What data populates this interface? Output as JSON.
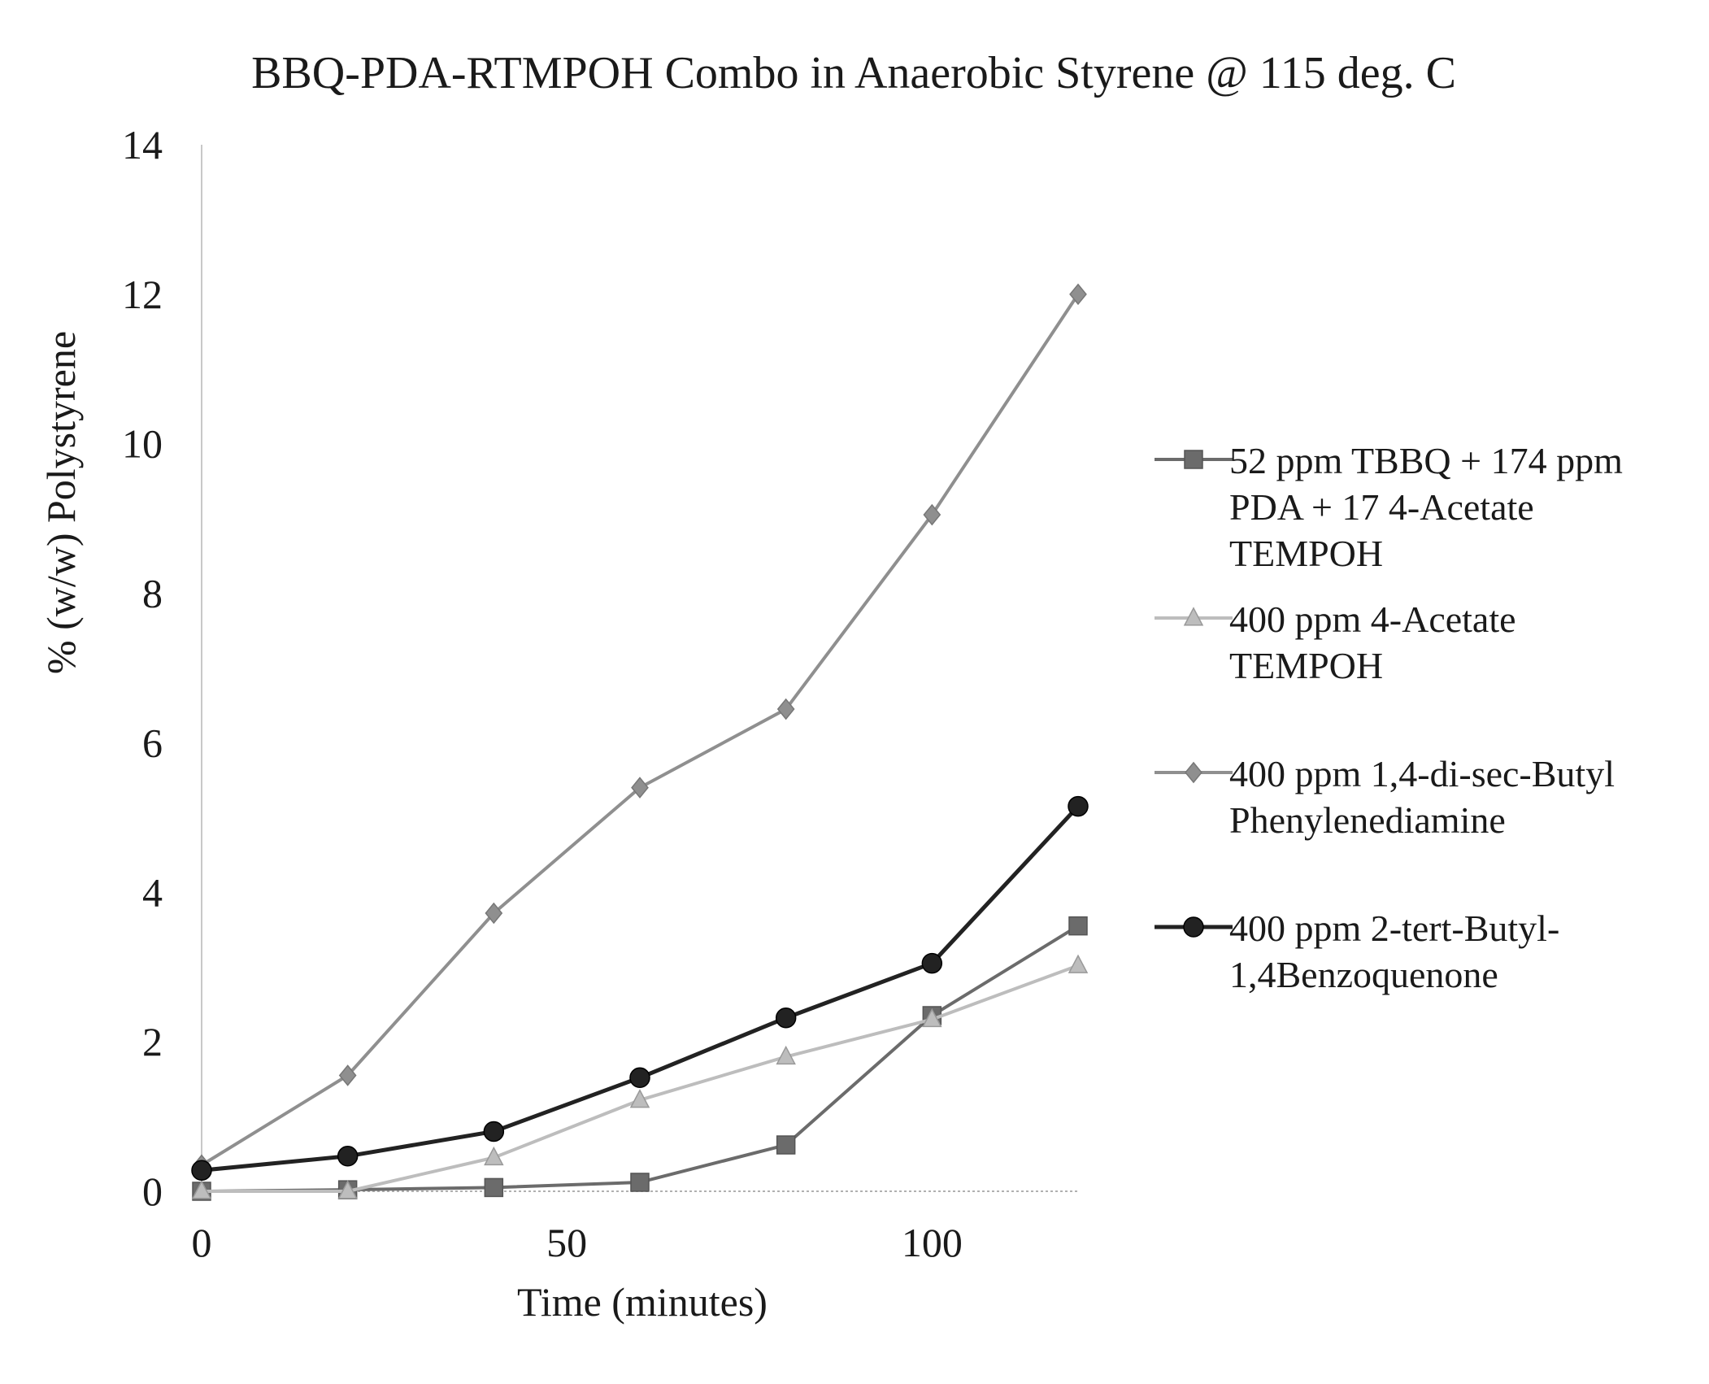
{
  "chart_data": {
    "type": "line",
    "title": "BBQ-PDA-RTMPOH Combo in Anaerobic Styrene @ 115 deg. C",
    "xlabel": "Time (minutes)",
    "ylabel": "% (w/w) Polystyrene",
    "xlim": [
      0,
      120
    ],
    "ylim": [
      0,
      14
    ],
    "x_ticks": [
      0,
      50,
      100
    ],
    "y_ticks": [
      0,
      2,
      4,
      6,
      8,
      10,
      12,
      14
    ],
    "grid": false,
    "legend_position": "right",
    "x": [
      0,
      20,
      40,
      60,
      80,
      100,
      120
    ],
    "series": [
      {
        "name": "52 ppm TBBQ + 174 ppm PDA + 17 4-Acetate TEMPOH",
        "legend_lines": [
          "52 ppm TBBQ + 174 ppm",
          "PDA + 17 4-Acetate",
          "TEMPOH"
        ],
        "marker": "square",
        "color": "#6b6b6b",
        "values": [
          0.0,
          0.02,
          0.05,
          0.12,
          0.62,
          2.35,
          3.55
        ]
      },
      {
        "name": "400 ppm 4-Acetate TEMPOH",
        "legend_lines": [
          "400 ppm 4-Acetate",
          "TEMPOH"
        ],
        "marker": "triangle",
        "color": "#bdbdbd",
        "values": [
          0.0,
          0.0,
          0.45,
          1.22,
          1.8,
          2.3,
          3.02
        ]
      },
      {
        "name": "400 ppm 1,4-di-sec-Butyl Phenylenediamine",
        "legend_lines": [
          "400 ppm 1,4-di-sec-Butyl",
          "Phenylenediamine"
        ],
        "marker": "diamond",
        "color": "#8f8f8f",
        "values": [
          0.35,
          1.55,
          3.72,
          5.4,
          6.45,
          9.05,
          12.0
        ]
      },
      {
        "name": "400 ppm 2-tert-Butyl-1,4Benzoquenone",
        "legend_lines": [
          "400 ppm 2-tert-Butyl-",
          "1,4Benzoquenone"
        ],
        "marker": "circle",
        "color": "#222222",
        "values": [
          0.28,
          0.47,
          0.8,
          1.52,
          2.32,
          3.05,
          5.15
        ]
      }
    ]
  }
}
